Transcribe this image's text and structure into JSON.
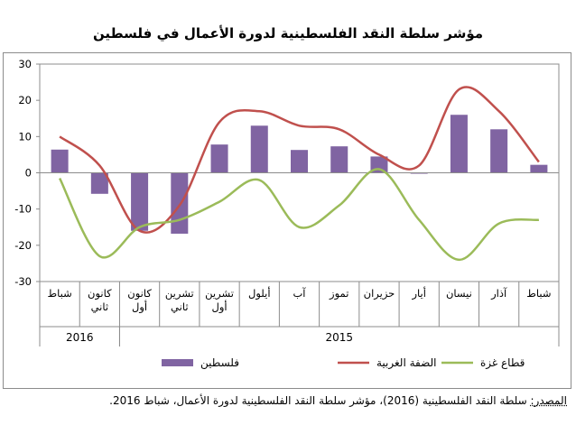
{
  "title": "مؤشر سلطة النقد الفلسطينية لدورة الأعمال في فلسطين",
  "source": {
    "label": "المصدر:",
    "text": " سلطة النقد الفلسطينية (2016)، مؤشر سلطة النقد الفلسطينية لدورة الأعمال، شباط 2016."
  },
  "chart_data": {
    "type": "bar",
    "categories": [
      "شباط",
      "آذار",
      "نيسان",
      "أيار",
      "حزيران",
      "تموز",
      "آب",
      "أيلول",
      "تشرين أول",
      "تشرين ثاني",
      "كانون أول",
      "كانون ثاني",
      "شباط"
    ],
    "category_lines": [
      [
        "شباط"
      ],
      [
        "آذار"
      ],
      [
        "نيسان"
      ],
      [
        "أيار"
      ],
      [
        "حزيران"
      ],
      [
        "تموز"
      ],
      [
        "آب"
      ],
      [
        "أيلول"
      ],
      [
        "تشرين",
        "أول"
      ],
      [
        "تشرين",
        "ثاني"
      ],
      [
        "كانون",
        "أول"
      ],
      [
        "كانون",
        "ثاني"
      ],
      [
        "شباط"
      ]
    ],
    "year_labels": [
      {
        "label": "2015",
        "from": 0,
        "to": 10
      },
      {
        "label": "2016",
        "from": 11,
        "to": 12
      }
    ],
    "ylim": [
      -30,
      30
    ],
    "yticks": [
      -30,
      -20,
      -10,
      0,
      10,
      20,
      30
    ],
    "grid": false,
    "legend_position": "bottom",
    "series": [
      {
        "name": "فلسطين",
        "type": "bar",
        "color": "#8064a2",
        "values": [
          2.2,
          12,
          16,
          -0.2,
          4.5,
          7.3,
          6.3,
          13,
          7.8,
          -16.8,
          -16,
          -5.8,
          6.4
        ]
      },
      {
        "name": "الضفة الغربية",
        "type": "line",
        "color": "#c0504d",
        "values": [
          3,
          17,
          23,
          2,
          5,
          12,
          13,
          17,
          14,
          -9,
          -16,
          2,
          10
        ]
      },
      {
        "name": "قطاع غزة",
        "type": "line",
        "color": "#9bbb59",
        "values": [
          -13,
          -14,
          -24,
          -13,
          1,
          -9,
          -15,
          -2,
          -8,
          -13,
          -15,
          -23,
          -1.5
        ]
      }
    ]
  }
}
